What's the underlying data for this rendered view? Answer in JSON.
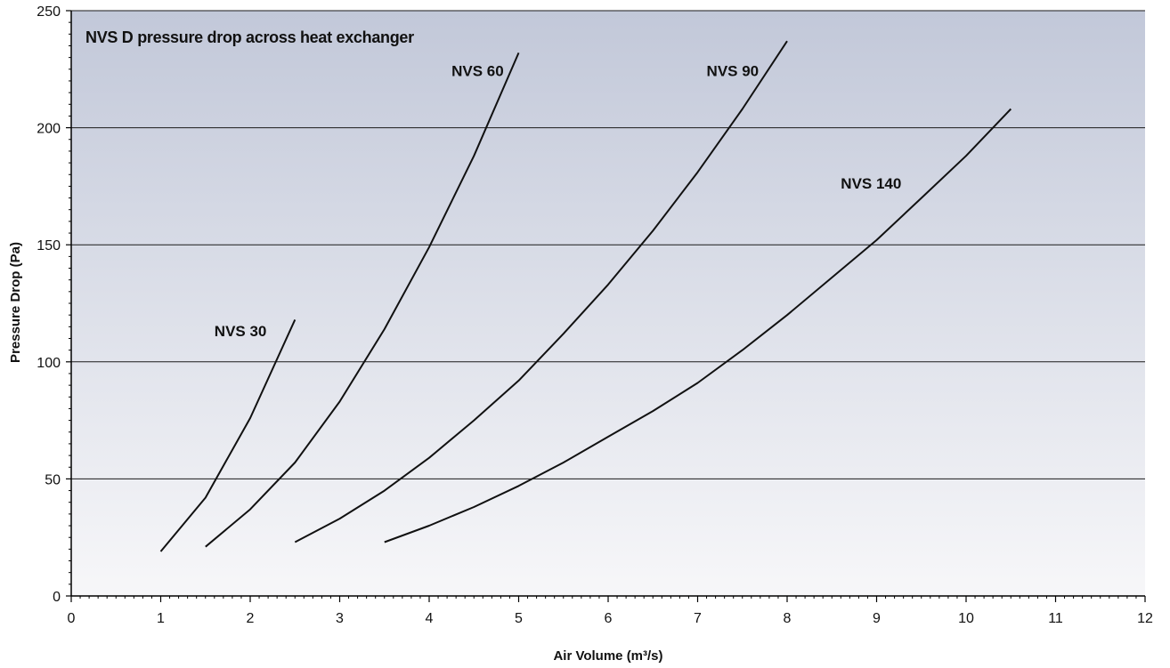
{
  "chart_data": {
    "type": "line",
    "title": "NVS D pressure drop across heat exchanger",
    "xlabel": "Air Volume (m³/s)",
    "ylabel": "Pressure Drop (Pa)",
    "xlim": [
      0,
      12
    ],
    "ylim": [
      0,
      250
    ],
    "x_ticks": [
      "0",
      "1",
      "2",
      "3",
      "4",
      "5",
      "6",
      "7",
      "8",
      "9",
      "10",
      "11",
      "12"
    ],
    "y_ticks": [
      "0",
      "50",
      "100",
      "150",
      "200",
      "250"
    ],
    "grid": "horizontal",
    "background": {
      "top_color": "#c2c8d9",
      "bottom_color": "#f7f7f9"
    },
    "series": [
      {
        "name": "NVS 30",
        "label_at": [
          1.6,
          111
        ],
        "points": [
          [
            1.0,
            19
          ],
          [
            1.5,
            42
          ],
          [
            2.0,
            76
          ],
          [
            2.5,
            118
          ]
        ]
      },
      {
        "name": "NVS 60",
        "label_at": [
          4.25,
          222
        ],
        "points": [
          [
            1.5,
            21
          ],
          [
            2.0,
            37
          ],
          [
            2.5,
            57
          ],
          [
            3.0,
            83
          ],
          [
            3.5,
            114
          ],
          [
            4.0,
            149
          ],
          [
            4.5,
            188
          ],
          [
            5.0,
            232
          ]
        ]
      },
      {
        "name": "NVS 90",
        "label_at": [
          7.1,
          222
        ],
        "points": [
          [
            2.5,
            23
          ],
          [
            3.0,
            33
          ],
          [
            3.5,
            45
          ],
          [
            4.0,
            59
          ],
          [
            4.5,
            75
          ],
          [
            5.0,
            92
          ],
          [
            5.5,
            112
          ],
          [
            6.0,
            133
          ],
          [
            6.5,
            156
          ],
          [
            7.0,
            181
          ],
          [
            7.5,
            208
          ],
          [
            8.0,
            237
          ]
        ]
      },
      {
        "name": "NVS 140",
        "label_at": [
          8.6,
          174
        ],
        "points": [
          [
            3.5,
            23
          ],
          [
            4.0,
            30
          ],
          [
            4.5,
            38
          ],
          [
            5.0,
            47
          ],
          [
            5.5,
            57
          ],
          [
            6.0,
            68
          ],
          [
            6.5,
            79
          ],
          [
            7.0,
            91
          ],
          [
            7.5,
            105
          ],
          [
            8.0,
            120
          ],
          [
            8.5,
            136
          ],
          [
            9.0,
            152
          ],
          [
            9.5,
            170
          ],
          [
            10.0,
            188
          ],
          [
            10.5,
            208
          ]
        ]
      }
    ]
  }
}
